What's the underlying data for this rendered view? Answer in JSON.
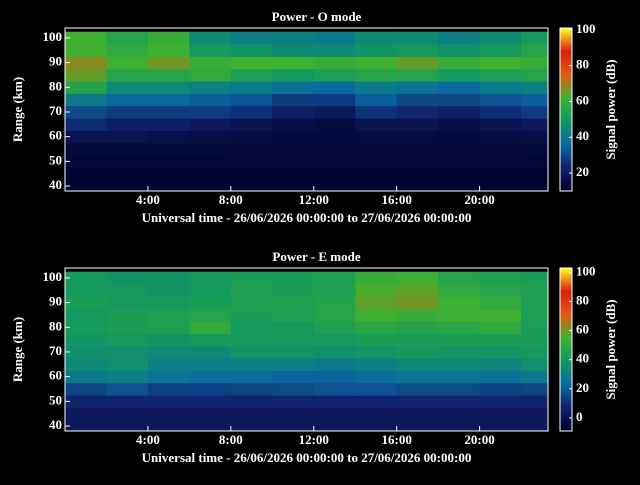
{
  "chart_data": [
    {
      "type": "heatmap",
      "title": "Power - O mode",
      "xlabel": "Universal time - 26/06/2026 00:00:00 to 27/06/2026 00:00:00",
      "ylabel": "Range (km)",
      "colorbar_label": "Signal power (dB)",
      "xlim": [
        0,
        23.3
      ],
      "ylim": [
        38,
        104
      ],
      "xticks": [
        {
          "value": 4,
          "label": "4:00"
        },
        {
          "value": 8,
          "label": "8:00"
        },
        {
          "value": 12,
          "label": "12:00"
        },
        {
          "value": 16,
          "label": "16:00"
        },
        {
          "value": 20,
          "label": "20:00"
        }
      ],
      "yticks": [
        40,
        50,
        60,
        70,
        80,
        90,
        100
      ],
      "clim": [
        10,
        101
      ],
      "cticks": [
        20,
        40,
        60,
        80,
        100
      ],
      "colormap": [
        "#000028",
        "#10206a",
        "#0a6aa0",
        "#109860",
        "#40b030",
        "#e05a10",
        "#d82010",
        "#ffff20"
      ],
      "x_bins": [
        0,
        2,
        4,
        6,
        8,
        10,
        12,
        14,
        16,
        18,
        20,
        22,
        23.3
      ],
      "y_bins": [
        37.5,
        42.5,
        47.5,
        52.5,
        57.5,
        62.5,
        67.5,
        72.5,
        77.5,
        82.5,
        87.5,
        92.5,
        97.5,
        102.5
      ],
      "z": [
        [
          12,
          12,
          12,
          12,
          12,
          12,
          12,
          12,
          12,
          12,
          12,
          12
        ],
        [
          12,
          12,
          12,
          12,
          12,
          12,
          12,
          12,
          12,
          12,
          12,
          12
        ],
        [
          13,
          13,
          13,
          13,
          13,
          13,
          13,
          13,
          13,
          13,
          13,
          13
        ],
        [
          14,
          14,
          14,
          14,
          13,
          13,
          13,
          13,
          13,
          13,
          13,
          14
        ],
        [
          18,
          18,
          17,
          16,
          15,
          14,
          14,
          15,
          15,
          14,
          15,
          16
        ],
        [
          25,
          22,
          22,
          20,
          18,
          16,
          15,
          18,
          18,
          16,
          18,
          20
        ],
        [
          30,
          28,
          28,
          28,
          26,
          22,
          20,
          26,
          24,
          22,
          25,
          28
        ],
        [
          40,
          36,
          36,
          34,
          32,
          28,
          28,
          34,
          30,
          30,
          32,
          34
        ],
        [
          55,
          45,
          45,
          42,
          40,
          38,
          36,
          40,
          38,
          36,
          40,
          42
        ],
        [
          65,
          55,
          55,
          58,
          52,
          50,
          52,
          55,
          55,
          50,
          52,
          55
        ],
        [
          68,
          62,
          66,
          60,
          62,
          62,
          60,
          62,
          65,
          60,
          62,
          60
        ],
        [
          62,
          58,
          62,
          50,
          48,
          45,
          45,
          48,
          50,
          48,
          50,
          55
        ],
        [
          62,
          55,
          60,
          45,
          42,
          42,
          40,
          45,
          45,
          42,
          45,
          50
        ]
      ]
    },
    {
      "type": "heatmap",
      "title": "Power - E mode",
      "xlabel": "Universal time - 26/06/2026 00:00:00 to 27/06/2026 00:00:00",
      "ylabel": "Range (km)",
      "colorbar_label": "Signal power (dB)",
      "xlim": [
        0,
        23.3
      ],
      "ylim": [
        38,
        104
      ],
      "xticks": [
        {
          "value": 4,
          "label": "4:00"
        },
        {
          "value": 8,
          "label": "8:00"
        },
        {
          "value": 12,
          "label": "12:00"
        },
        {
          "value": 16,
          "label": "16:00"
        },
        {
          "value": 20,
          "label": "20:00"
        }
      ],
      "yticks": [
        40,
        50,
        60,
        70,
        80,
        90,
        100
      ],
      "clim": [
        -9,
        103
      ],
      "cticks": [
        0,
        20,
        40,
        60,
        80,
        100
      ],
      "colormap": [
        "#000028",
        "#10206a",
        "#0a6aa0",
        "#109860",
        "#40b030",
        "#e05a10",
        "#d82010",
        "#ffff20"
      ],
      "x_bins": [
        0,
        2,
        4,
        6,
        8,
        10,
        12,
        14,
        16,
        18,
        20,
        22,
        23.3
      ],
      "y_bins": [
        37.5,
        42.5,
        47.5,
        52.5,
        57.5,
        62.5,
        67.5,
        72.5,
        77.5,
        82.5,
        87.5,
        92.5,
        97.5,
        102.5
      ],
      "z": [
        [
          3,
          3,
          3,
          3,
          3,
          3,
          3,
          3,
          3,
          3,
          3,
          3
        ],
        [
          3,
          3,
          3,
          3,
          3,
          3,
          3,
          3,
          3,
          3,
          3,
          3
        ],
        [
          8,
          8,
          8,
          8,
          8,
          8,
          8,
          8,
          8,
          8,
          8,
          8
        ],
        [
          15,
          18,
          14,
          14,
          15,
          16,
          18,
          18,
          16,
          16,
          14,
          15
        ],
        [
          28,
          30,
          26,
          24,
          24,
          22,
          22,
          24,
          26,
          26,
          25,
          28
        ],
        [
          34,
          36,
          30,
          30,
          30,
          30,
          28,
          30,
          34,
          34,
          32,
          36
        ],
        [
          36,
          36,
          34,
          34,
          38,
          38,
          36,
          38,
          40,
          38,
          38,
          40
        ],
        [
          38,
          40,
          38,
          40,
          40,
          40,
          40,
          42,
          42,
          42,
          42,
          42
        ],
        [
          40,
          42,
          44,
          50,
          40,
          40,
          44,
          48,
          46,
          48,
          50,
          42
        ],
        [
          40,
          42,
          44,
          46,
          42,
          44,
          46,
          54,
          52,
          54,
          54,
          44
        ],
        [
          42,
          40,
          40,
          42,
          44,
          44,
          46,
          58,
          60,
          55,
          50,
          44
        ],
        [
          40,
          40,
          38,
          40,
          44,
          42,
          44,
          56,
          58,
          50,
          46,
          44
        ],
        [
          40,
          38,
          38,
          40,
          42,
          42,
          44,
          52,
          54,
          46,
          44,
          42
        ]
      ]
    }
  ]
}
